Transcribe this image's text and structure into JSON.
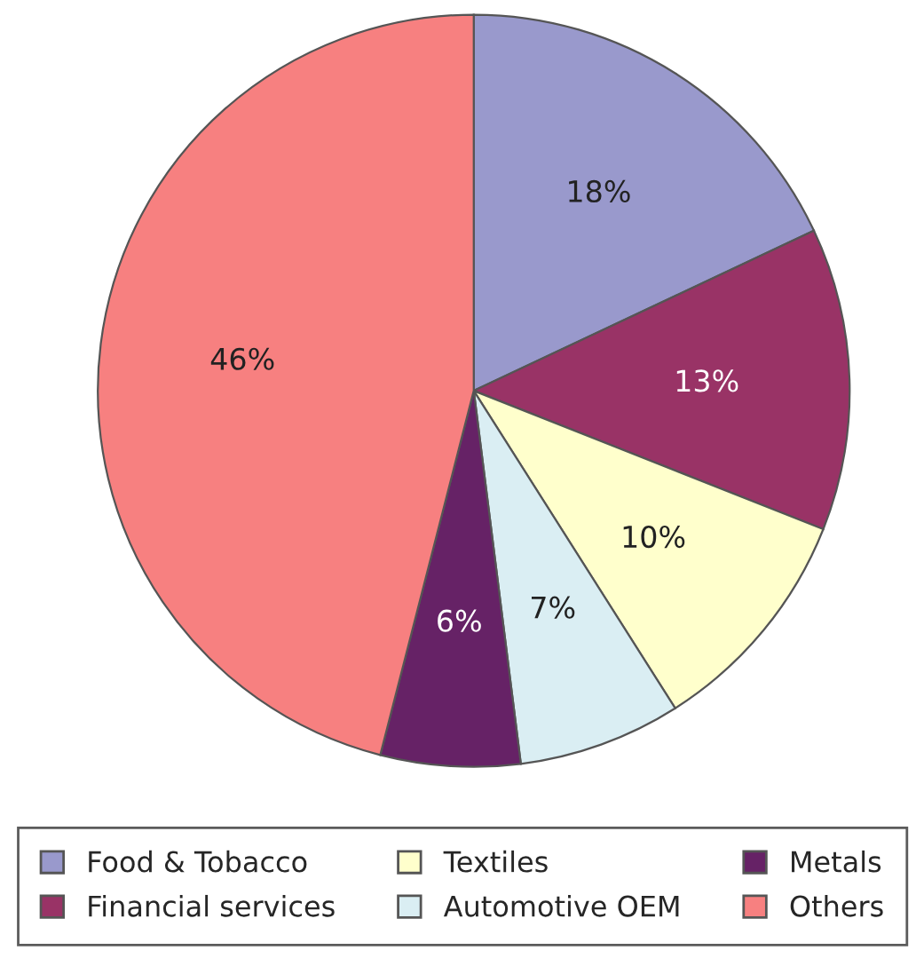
{
  "chart_data": {
    "type": "pie",
    "categories": [
      "Food & Tobacco",
      "Financial services",
      "Textiles",
      "Automotive OEM",
      "Metals",
      "Others"
    ],
    "values": [
      18,
      13,
      10,
      7,
      6,
      46
    ],
    "value_labels": [
      "18%",
      "13%",
      "10%",
      "7%",
      "6%",
      "46%"
    ],
    "colors": [
      "#9999cc",
      "#993366",
      "#ffffcc",
      "#daeef3",
      "#662266",
      "#f78080"
    ],
    "legend": "bottom"
  }
}
